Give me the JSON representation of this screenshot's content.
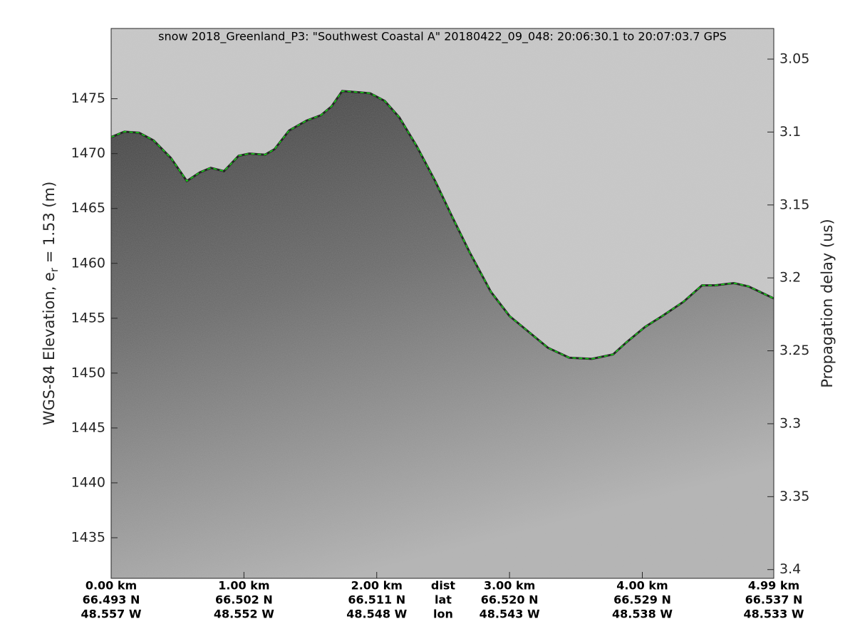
{
  "chart_data": {
    "type": "line",
    "title": "snow 2018_Greenland_P3: \"Southwest Coastal A\"  20180422_09_048: 20:06:30.1 to 20:07:03.7 GPS",
    "ylabel": "WGS-84 Elevation, e",
    "ylabel_sub": "r",
    "ylabel_rest": " = 1.53 (m)",
    "y2label": "Propagation delay (us)",
    "xlim": [
      0,
      4.99
    ],
    "ylim": [
      1431.3,
      1481.4
    ],
    "y2lim": [
      3.406,
      3.029
    ],
    "y2_reversed": true,
    "xticks": [
      {
        "value": 0,
        "label": "0.00 km"
      },
      {
        "value": 1,
        "label": "1.00 km"
      },
      {
        "value": 2,
        "label": "2.00 km"
      },
      {
        "value": 3,
        "label": "3.00 km"
      },
      {
        "value": 4,
        "label": "4.00 km"
      },
      {
        "value": 4.99,
        "label": "4.99 km"
      }
    ],
    "lat_labels": [
      "66.493 N",
      "66.502 N",
      "66.511 N",
      "66.520 N",
      "66.529 N",
      "66.537 N"
    ],
    "lon_labels": [
      "48.557 W",
      "48.552 W",
      "48.548 W",
      "48.543 W",
      "48.538 W",
      "48.533 W"
    ],
    "row_labels": [
      "dist",
      "lat",
      "lon"
    ],
    "yticks": [
      1435,
      1440,
      1445,
      1450,
      1455,
      1460,
      1465,
      1470,
      1475
    ],
    "y2ticks": [
      3.05,
      3.1,
      3.15,
      3.2,
      3.25,
      3.3,
      3.35,
      3.4
    ],
    "series": [
      {
        "name": "surface",
        "color": "#00e000",
        "x": [
          0,
          0.1,
          0.21,
          0.32,
          0.45,
          0.57,
          0.67,
          0.75,
          0.85,
          0.96,
          1.04,
          1.16,
          1.23,
          1.34,
          1.47,
          1.58,
          1.66,
          1.74,
          1.85,
          1.95,
          2.06,
          2.17,
          2.3,
          2.44,
          2.57,
          2.7,
          2.86,
          3.0,
          3.13,
          3.29,
          3.45,
          3.62,
          3.78,
          3.88,
          4.02,
          4.15,
          4.31,
          4.45,
          4.55,
          4.69,
          4.8,
          4.99
        ],
        "values": [
          1471.5,
          1472.0,
          1471.9,
          1471.2,
          1469.6,
          1467.5,
          1468.3,
          1468.7,
          1468.4,
          1469.8,
          1470.0,
          1469.9,
          1470.4,
          1472.1,
          1473.0,
          1473.5,
          1474.3,
          1475.7,
          1475.6,
          1475.5,
          1474.8,
          1473.3,
          1470.7,
          1467.5,
          1464.2,
          1461.0,
          1457.4,
          1455.2,
          1453.9,
          1452.3,
          1451.4,
          1451.3,
          1451.7,
          1452.8,
          1454.2,
          1455.2,
          1456.5,
          1458.0,
          1458.0,
          1458.2,
          1457.9,
          1456.8
        ]
      }
    ]
  }
}
